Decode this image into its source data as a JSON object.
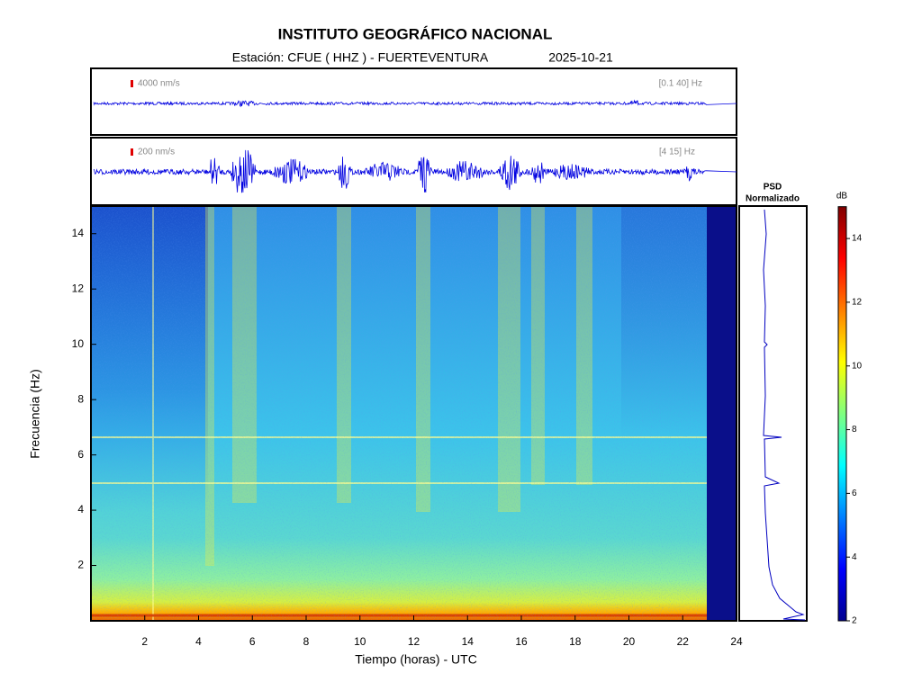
{
  "title": "INSTITUTO GEOGRÁFICO NACIONAL",
  "station": "Estación:  CFUE ( HHZ ) - FUERTEVENTURA",
  "date": "2025-10-21",
  "waveforms": [
    {
      "scale": "4000 nm/s",
      "band": "[0.1 40] Hz"
    },
    {
      "scale": "200 nm/s",
      "band": "[4 15] Hz"
    }
  ],
  "chart_data": {
    "type": "spectrogram",
    "xlabel": "Tiempo (horas) - UTC",
    "ylabel": "Frecuencia  (Hz)",
    "xlim": [
      0,
      24
    ],
    "xticks": [
      2,
      4,
      6,
      8,
      10,
      12,
      14,
      16,
      18,
      20,
      22,
      24
    ],
    "ylim": [
      0,
      15
    ],
    "yticks": [
      2,
      4,
      6,
      8,
      10,
      12,
      14
    ]
  },
  "psd": {
    "title_line1": "PSD",
    "title_line2": "Normalizado"
  },
  "colorbar": {
    "label": "dB",
    "lim": [
      2,
      15
    ],
    "ticks": [
      2,
      4,
      6,
      8,
      10,
      12,
      14
    ]
  }
}
